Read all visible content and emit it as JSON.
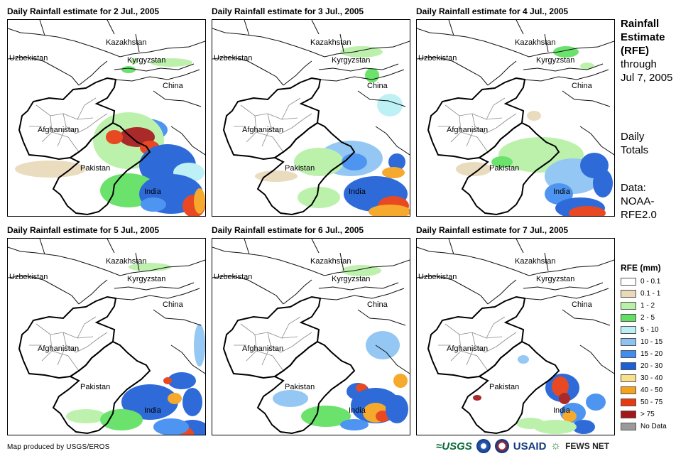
{
  "panels": [
    {
      "title": "Daily Rainfall estimate for 2 Jul., 2005"
    },
    {
      "title": "Daily Rainfall estimate for 3 Jul., 2005"
    },
    {
      "title": "Daily Rainfall estimate for 4 Jul., 2005"
    },
    {
      "title": "Daily Rainfall estimate for 5 Jul., 2005"
    },
    {
      "title": "Daily Rainfall estimate for 6 Jul., 2005"
    },
    {
      "title": "Daily Rainfall estimate for 7 Jul., 2005"
    }
  ],
  "map_labels": {
    "kazakhstan": "Kazakhstan",
    "uzbekistan": "Uzbekistan",
    "kyrgyzstan": "Kyrgyzstan",
    "china": "China",
    "afghanistan": "Afghanistan",
    "pakistan": "Pakistan",
    "india": "India"
  },
  "side": {
    "title_line1": "Rainfall",
    "title_line2": "Estimate",
    "title_line3": "(RFE)",
    "title_line4": "through",
    "title_line5": "Jul 7, 2005",
    "daily_line1": "Daily",
    "daily_line2": "Totals",
    "data_line1": "Data:",
    "data_line2": "NOAA-",
    "data_line3": "RFE2.0"
  },
  "legend": {
    "title": "RFE (mm)",
    "items": [
      {
        "label": "0 - 0.1",
        "color": "#ffffff"
      },
      {
        "label": "0.1 - 1",
        "color": "#e8d9b8"
      },
      {
        "label": "1 - 2",
        "color": "#b7f0a6"
      },
      {
        "label": "2 - 5",
        "color": "#5fe05f"
      },
      {
        "label": "5 - 10",
        "color": "#b9f0f5"
      },
      {
        "label": "10 - 15",
        "color": "#8cc3f2"
      },
      {
        "label": "15 - 20",
        "color": "#3f8df0"
      },
      {
        "label": "20 - 30",
        "color": "#1d5fd6"
      },
      {
        "label": "30 - 40",
        "color": "#f9e08a"
      },
      {
        "label": "40 - 50",
        "color": "#f5a21c"
      },
      {
        "label": "50 - 75",
        "color": "#e83a10"
      },
      {
        "label": "> 75",
        "color": "#a31818"
      },
      {
        "label": "No Data",
        "color": "#9a9a9a"
      }
    ]
  },
  "footer": {
    "credit": "Map produced by USGS/EROS",
    "logo_usgs": "≈USGS",
    "logo_usaid": "USAID",
    "logo_fews": "FEWS NET"
  }
}
